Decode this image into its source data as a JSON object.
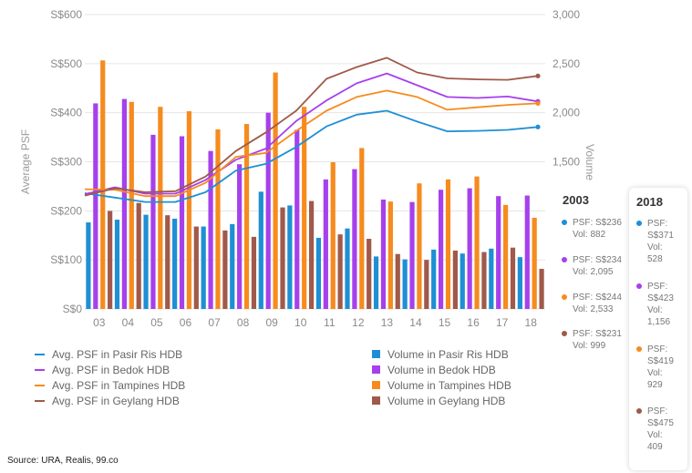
{
  "chart_data": {
    "type": "bar",
    "categories": [
      "03",
      "04",
      "05",
      "06",
      "07",
      "08",
      "09",
      "10",
      "11",
      "12",
      "13",
      "14",
      "15",
      "16",
      "17",
      "18"
    ],
    "left_axis": {
      "title": "Average PSF",
      "ticks": [
        "S$0",
        "S$100",
        "S$200",
        "S$300",
        "S$400",
        "S$500",
        "S$600"
      ],
      "range": [
        0,
        600
      ]
    },
    "right_axis": {
      "title": "Volume",
      "ticks": [
        "1,500",
        "2,000",
        "2,500",
        "3,000"
      ],
      "range": [
        0,
        3000
      ]
    },
    "bar_series": [
      {
        "name": "Volume in Pasir Ris HDB",
        "color": "#1e8fd5",
        "values": [
          882,
          910,
          960,
          920,
          840,
          865,
          1195,
          1055,
          725,
          820,
          535,
          505,
          605,
          565,
          615,
          528
        ]
      },
      {
        "name": "Volume in Bedok HDB",
        "color": "#a640ec",
        "values": [
          2095,
          2140,
          1775,
          1760,
          1610,
          1475,
          2000,
          1825,
          1320,
          1425,
          1115,
          1090,
          1215,
          1230,
          1150,
          1156
        ]
      },
      {
        "name": "Volume in Tampines HDB",
        "color": "#f68b1e",
        "values": [
          2533,
          2110,
          2060,
          2015,
          1830,
          1885,
          2410,
          2060,
          1495,
          1640,
          1095,
          1280,
          1320,
          1350,
          1060,
          929
        ]
      },
      {
        "name": "Volume in Geylang HDB",
        "color": "#a0594a",
        "values": [
          999,
          1080,
          955,
          840,
          800,
          735,
          1035,
          1100,
          760,
          715,
          560,
          500,
          595,
          580,
          625,
          409
        ]
      }
    ],
    "line_series": [
      {
        "name": "Avg. PSF in Pasir Ris HDB",
        "color": "#1e8fd5",
        "values": [
          236,
          227,
          218,
          218,
          238,
          282,
          296,
          330,
          372,
          396,
          404,
          382,
          362,
          363,
          365,
          371
        ]
      },
      {
        "name": "Avg. PSF in Bedok HDB",
        "color": "#a640ec",
        "values": [
          234,
          248,
          235,
          235,
          263,
          304,
          327,
          383,
          425,
          460,
          480,
          456,
          432,
          430,
          433,
          423
        ]
      },
      {
        "name": "Avg. PSF in Tampines HDB",
        "color": "#f68b1e",
        "values": [
          244,
          243,
          230,
          230,
          257,
          310,
          318,
          363,
          404,
          432,
          445,
          432,
          406,
          411,
          416,
          419
        ]
      },
      {
        "name": "Avg. PSF in Geylang HDB",
        "color": "#a0594a",
        "values": [
          231,
          246,
          238,
          240,
          270,
          322,
          360,
          404,
          469,
          493,
          512,
          482,
          470,
          468,
          467,
          475
        ]
      }
    ]
  },
  "tooltip_2003": {
    "title": "2003",
    "entries": [
      {
        "color": "#1e8fd5",
        "psf": "PSF: S$236",
        "vol": "Vol: 882"
      },
      {
        "color": "#a640ec",
        "psf": "PSF: S$234",
        "vol": "Vol: 2,095"
      },
      {
        "color": "#f68b1e",
        "psf": "PSF: S$244",
        "vol": "Vol: 2,533"
      },
      {
        "color": "#a0594a",
        "psf": "PSF: S$231",
        "vol": "Vol: 999"
      }
    ]
  },
  "tooltip_2018": {
    "title": "2018",
    "entries": [
      {
        "color": "#1e8fd5",
        "psf": "PSF:",
        "psf_val": "S$371",
        "vol": "Vol:",
        "vol_val": "528"
      },
      {
        "color": "#a640ec",
        "psf": "PSF:",
        "psf_val": "S$423",
        "vol": "Vol:",
        "vol_val": "1,156"
      },
      {
        "color": "#f68b1e",
        "psf": "PSF:",
        "psf_val": "S$419",
        "vol": "Vol:",
        "vol_val": "929"
      },
      {
        "color": "#a0594a",
        "psf": "PSF:",
        "psf_val": "S$475",
        "vol": "Vol:",
        "vol_val": "409"
      }
    ]
  },
  "source": "Source: URA, Realis, 99.co"
}
